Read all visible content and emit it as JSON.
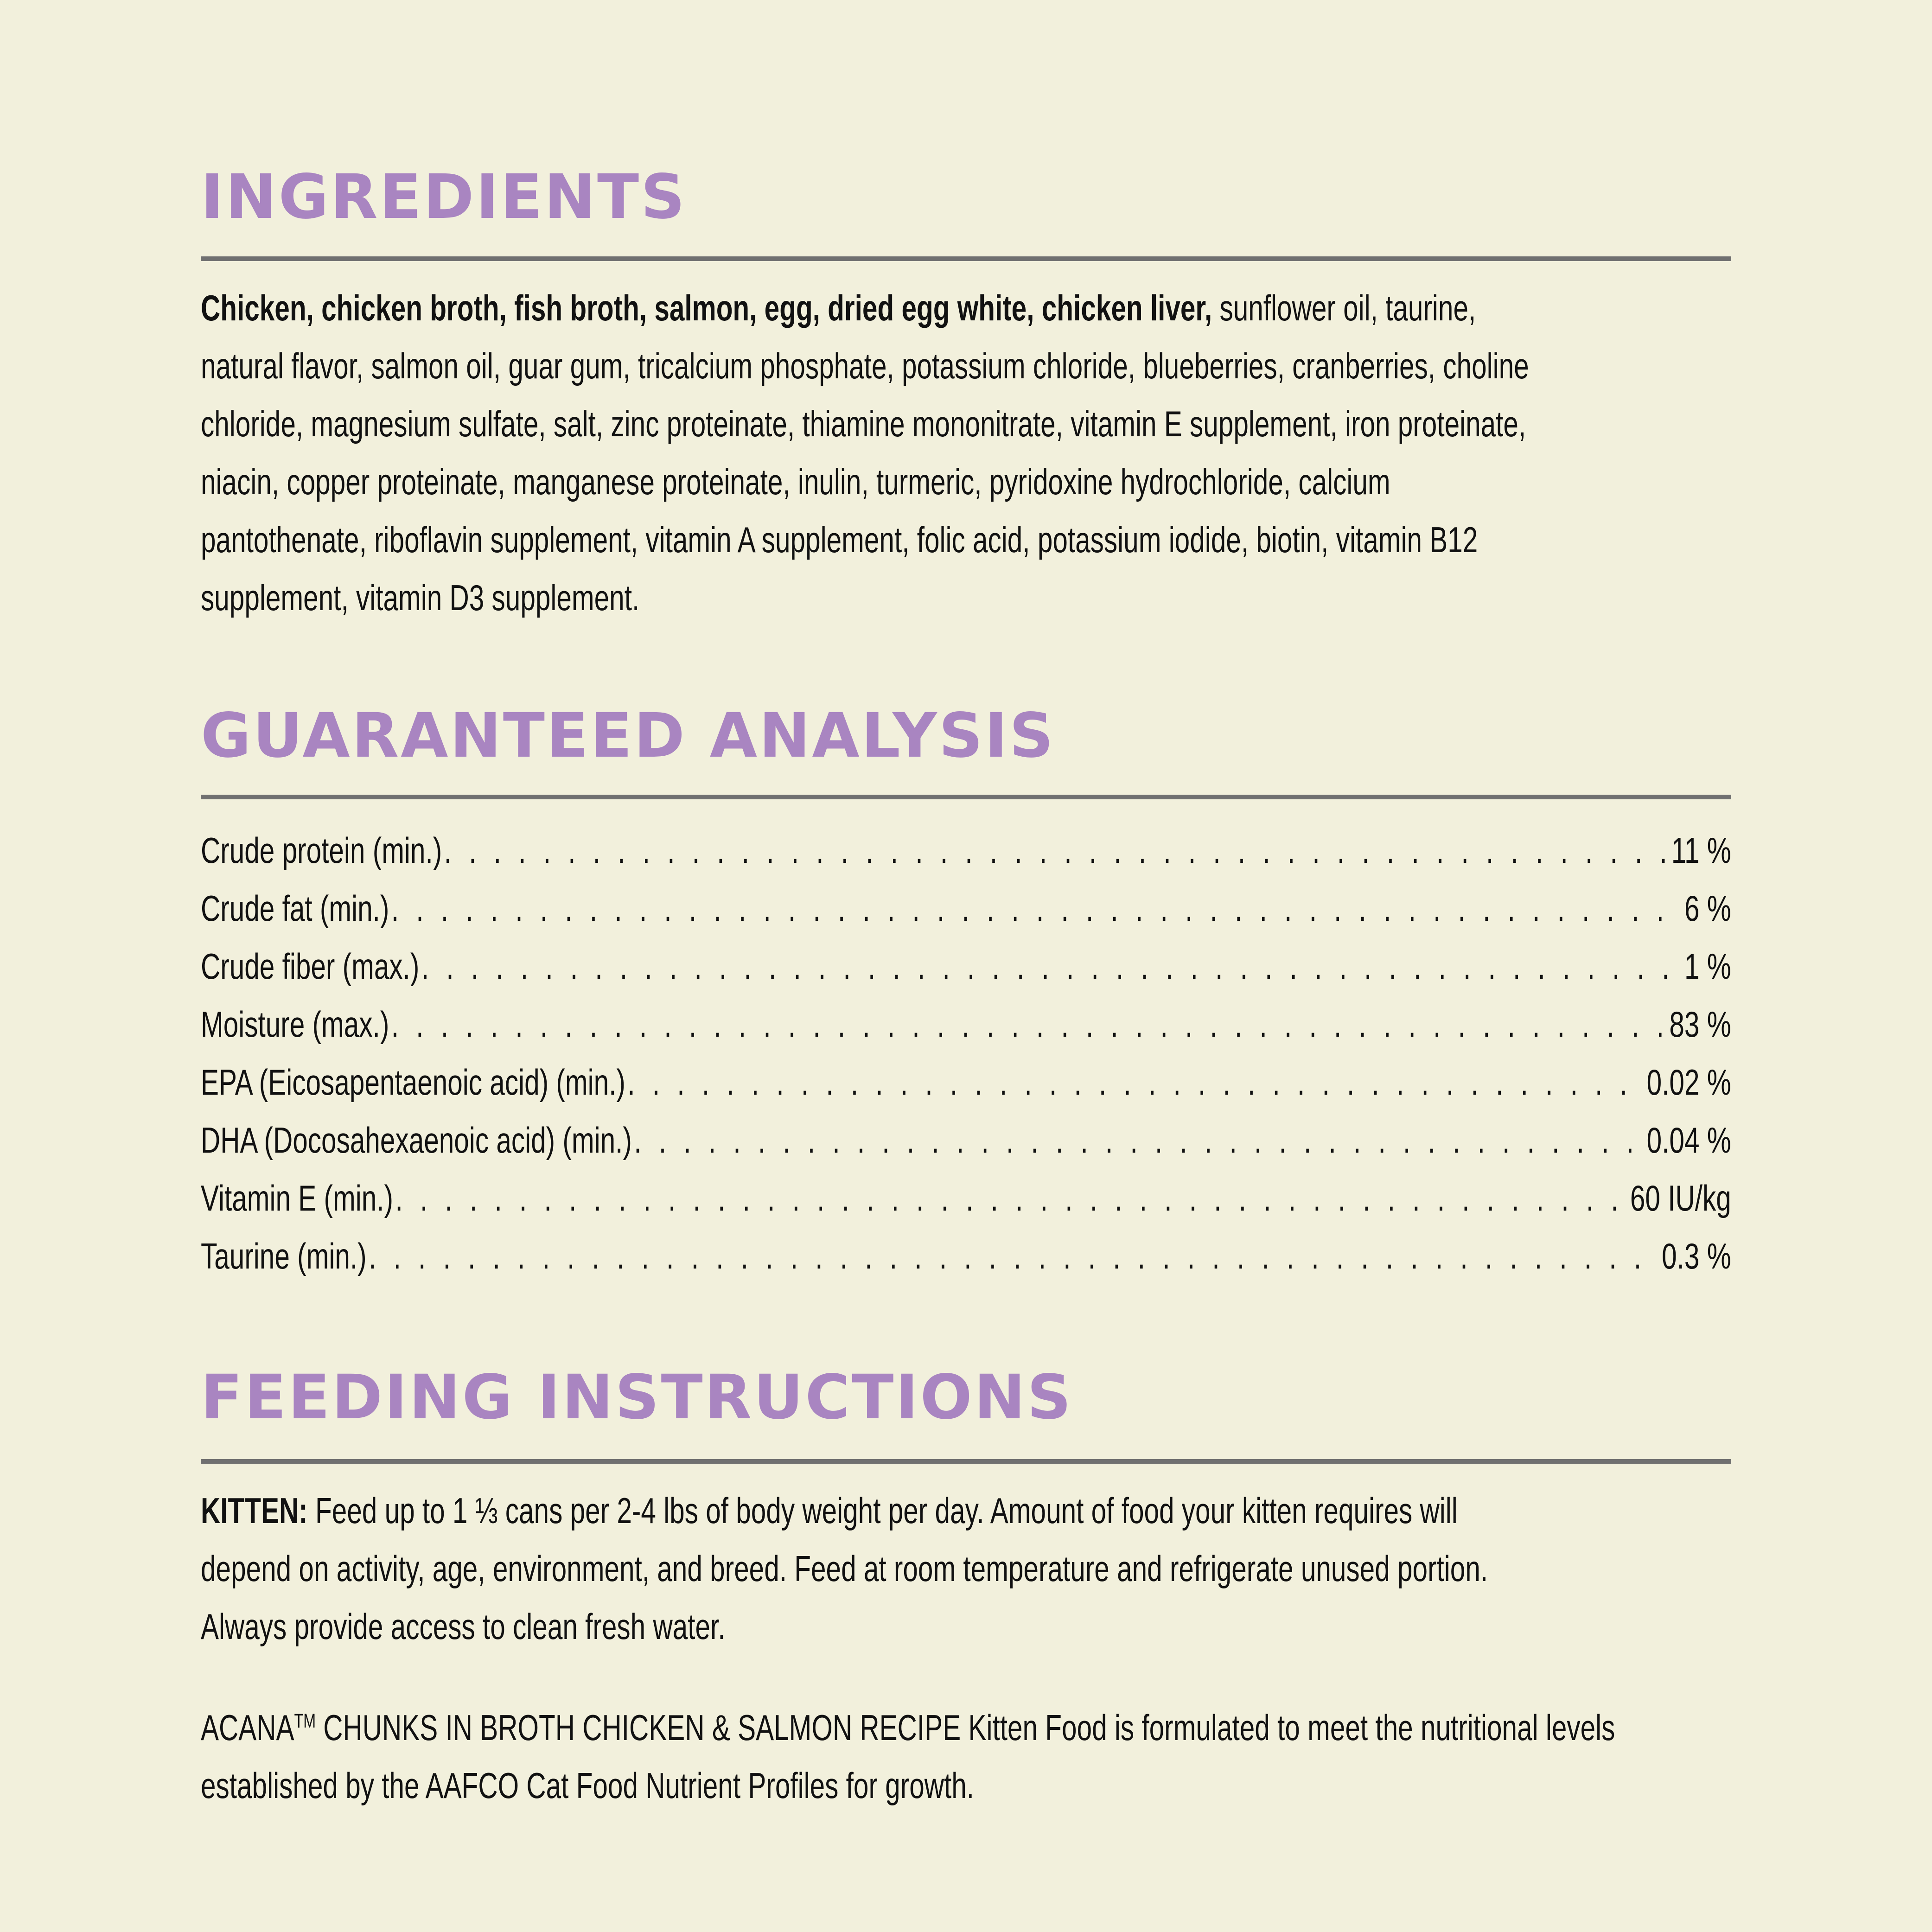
{
  "colors": {
    "background": "#f2f0dc",
    "heading": "#a985c1",
    "rule": "#707070",
    "text": "#111111"
  },
  "ingredients": {
    "title": "INGREDIENTS",
    "bold_lead": "Chicken, chicken broth, fish broth, salmon, egg, dried egg white, chicken liver,",
    "lines": [
      " sunflower oil, taurine,",
      "natural flavor, salmon oil, guar gum, tricalcium phosphate, potassium chloride, blueberries, cranberries, choline",
      "chloride, magnesium sulfate, salt, zinc proteinate, thiamine mononitrate, vitamin E supplement, iron proteinate,",
      "niacin, copper proteinate, manganese proteinate, inulin, turmeric, pyridoxine hydrochloride, calcium",
      "pantothenate, riboflavin supplement, vitamin A supplement, folic acid, potassium iodide, biotin, vitamin B12",
      "supplement, vitamin D3 supplement."
    ]
  },
  "analysis": {
    "title": "GUARANTEED ANALYSIS",
    "rows": [
      {
        "label": "Crude protein (min.)",
        "value": "11 %"
      },
      {
        "label": "Crude fat (min.)",
        "value": "6 %"
      },
      {
        "label": "Crude fiber (max.)",
        "value": "1 %"
      },
      {
        "label": "Moisture (max.)",
        "value": "83 %"
      },
      {
        "label": "EPA (Eicosapentaenoic acid) (min.)",
        "value": "0.02 %"
      },
      {
        "label": "DHA (Docosahexaenoic acid) (min.)",
        "value": "0.04 %"
      },
      {
        "label": "Vitamin E (min.)",
        "value": "60 IU/kg"
      },
      {
        "label": "Taurine (min.)",
        "value": "0.3 %"
      }
    ]
  },
  "feeding": {
    "title": "FEEDING INSTRUCTIONS",
    "kitten_label": "KITTEN:",
    "kitten_lines": [
      " Feed up to 1 ⅓ cans per 2-4 lbs of body weight per day. Amount of food your kitten requires will",
      "depend on activity, age, environment, and breed. Feed at room temperature and refrigerate unused portion.",
      "Always provide access to clean fresh water."
    ],
    "aafco_brand": "ACANA",
    "aafco_tm": "TM",
    "aafco_lines": [
      " CHUNKS IN BROTH CHICKEN & SALMON RECIPE Kitten Food is formulated to meet the nutritional levels",
      "established by the AAFCO Cat Food Nutrient Profiles for growth."
    ]
  }
}
